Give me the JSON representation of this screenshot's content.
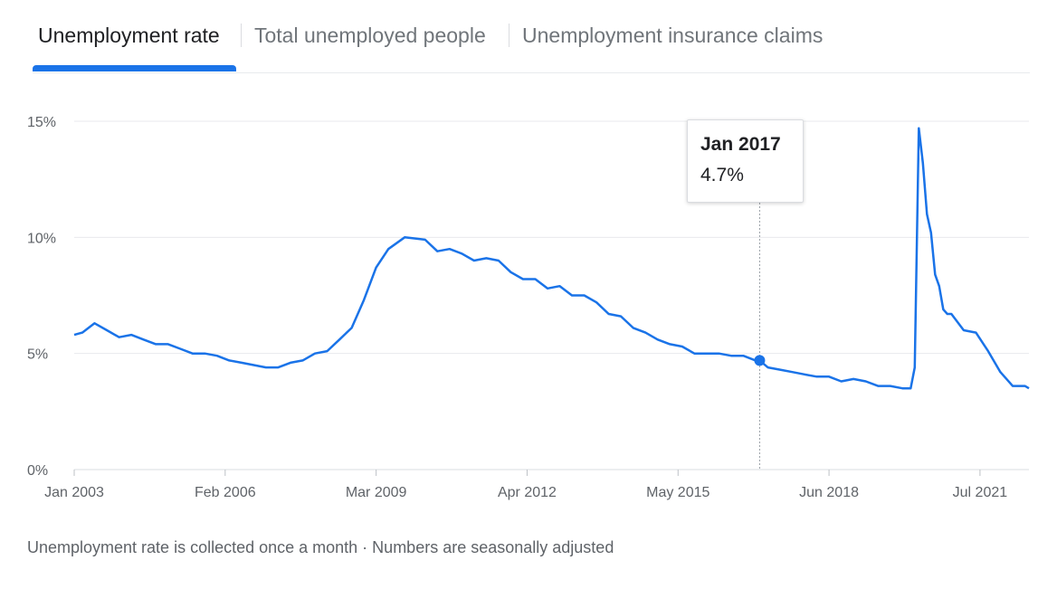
{
  "tabs": [
    {
      "label": "Unemployment rate",
      "active": true
    },
    {
      "label": "Total unemployed people",
      "active": false
    },
    {
      "label": "Unemployment insurance claims",
      "active": false
    }
  ],
  "tooltip": {
    "date": "Jan 2017",
    "value": "4.7%"
  },
  "footnote": "Unemployment rate is collected once a month · Numbers are seasonally adjusted",
  "colors": {
    "line": "#1a73e8",
    "grid": "#e8eaed",
    "axis_text": "#5f6368",
    "active_tab": "#1a73e8"
  },
  "chart_data": {
    "type": "line",
    "title": "",
    "xlabel": "",
    "ylabel": "",
    "ylim": [
      0,
      15
    ],
    "y_ticks": [
      0,
      5,
      10,
      15
    ],
    "y_tick_labels": [
      "0%",
      "5%",
      "10%",
      "15%"
    ],
    "x_tick_labels": [
      "Jan 2003",
      "Feb 2006",
      "Mar 2009",
      "Apr 2012",
      "May 2015",
      "Jun 2018",
      "Jul 2021"
    ],
    "x_ticks": [
      "2003-01",
      "2006-02",
      "2009-03",
      "2012-04",
      "2015-05",
      "2018-06",
      "2021-07"
    ],
    "x_range": [
      "2003-01",
      "2022-07"
    ],
    "highlight": {
      "x": "2017-01",
      "y": 4.7
    },
    "grid": true,
    "series": [
      {
        "x": [
          "2003-01",
          "2003-03",
          "2003-06",
          "2003-09",
          "2003-12",
          "2004-03",
          "2004-06",
          "2004-09",
          "2004-12",
          "2005-03",
          "2005-06",
          "2005-09",
          "2005-12",
          "2006-03",
          "2006-06",
          "2006-09",
          "2006-12",
          "2007-03",
          "2007-06",
          "2007-09",
          "2007-12",
          "2008-03",
          "2008-06",
          "2008-09",
          "2008-12",
          "2009-03",
          "2009-06",
          "2009-10",
          "2010-03",
          "2010-06",
          "2010-09",
          "2010-12",
          "2011-03",
          "2011-06",
          "2011-09",
          "2011-12",
          "2012-03",
          "2012-06",
          "2012-09",
          "2012-12",
          "2013-03",
          "2013-06",
          "2013-09",
          "2013-12",
          "2014-03",
          "2014-06",
          "2014-09",
          "2014-12",
          "2015-03",
          "2015-06",
          "2015-09",
          "2015-12",
          "2016-03",
          "2016-06",
          "2016-09",
          "2016-12",
          "2017-01",
          "2017-03",
          "2017-06",
          "2017-09",
          "2017-12",
          "2018-03",
          "2018-06",
          "2018-09",
          "2018-12",
          "2019-03",
          "2019-06",
          "2019-09",
          "2019-12",
          "2020-02",
          "2020-03",
          "2020-04",
          "2020-05",
          "2020-06",
          "2020-07",
          "2020-08",
          "2020-09",
          "2020-10",
          "2020-11",
          "2020-12",
          "2021-03",
          "2021-06",
          "2021-09",
          "2021-12",
          "2022-03",
          "2022-06",
          "2022-07"
        ],
        "y": [
          5.8,
          5.9,
          6.3,
          6.0,
          5.7,
          5.8,
          5.6,
          5.4,
          5.4,
          5.2,
          5.0,
          5.0,
          4.9,
          4.7,
          4.6,
          4.5,
          4.4,
          4.4,
          4.6,
          4.7,
          5.0,
          5.1,
          5.6,
          6.1,
          7.3,
          8.7,
          9.5,
          10.0,
          9.9,
          9.4,
          9.5,
          9.3,
          9.0,
          9.1,
          9.0,
          8.5,
          8.2,
          8.2,
          7.8,
          7.9,
          7.5,
          7.5,
          7.2,
          6.7,
          6.6,
          6.1,
          5.9,
          5.6,
          5.4,
          5.3,
          5.0,
          5.0,
          5.0,
          4.9,
          4.9,
          4.7,
          4.7,
          4.4,
          4.3,
          4.2,
          4.1,
          4.0,
          4.0,
          3.8,
          3.9,
          3.8,
          3.6,
          3.6,
          3.5,
          3.5,
          4.4,
          14.7,
          13.2,
          11.0,
          10.2,
          8.4,
          7.9,
          6.9,
          6.7,
          6.7,
          6.0,
          5.9,
          5.1,
          4.2,
          3.6,
          3.6,
          3.5
        ]
      }
    ]
  }
}
